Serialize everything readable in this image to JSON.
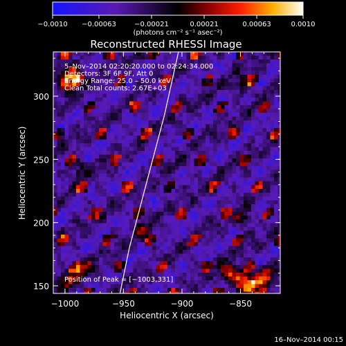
{
  "chart_data": {
    "type": "heatmap",
    "title": "Reconstructed RHESSI Image",
    "xlabel": "Heliocentric X (arcsec)",
    "ylabel": "Heliocentric Y (arcsec)",
    "xlim": [
      -1010,
      -816
    ],
    "ylim": [
      144,
      335
    ],
    "x_ticks": [
      -1000,
      -950,
      -900,
      -850
    ],
    "x_tick_labels": [
      "−1000",
      "−950",
      "−900",
      "−850"
    ],
    "y_ticks": [
      150,
      200,
      250,
      300
    ],
    "y_tick_labels": [
      "150",
      "200",
      "250",
      "300"
    ],
    "colorbar": {
      "range": [
        -0.001,
        0.001
      ],
      "ticks": [
        -0.001,
        -0.00063,
        -0.00021,
        0.00021,
        0.00063,
        0.001
      ],
      "tick_labels": [
        "−0.0010",
        "−0.00063",
        "−0.00021",
        "0.00021",
        "0.00063",
        "0.0010"
      ],
      "unit_label": "(photons cm⁻² s⁻¹ asec⁻²)"
    },
    "annotations": [
      "5–Nov–2014 02:20:20.000 to 02:24:34.000",
      "Detectors: 3F 6F 9F, Att 0",
      "Energy Range: 25.0 – 50.0 keV",
      "Clean    Total counts: 2.67E+03"
    ],
    "peak_label": "Position of Peak = [−1003,331]",
    "peak_position": [
      -1003,
      331
    ],
    "limb_curve": [
      [
        -953,
        144
      ],
      [
        -945,
        180
      ],
      [
        -935,
        215
      ],
      [
        -925,
        250
      ],
      [
        -915,
        285
      ],
      [
        -903,
        335
      ]
    ],
    "hot_regions": [
      {
        "x": -995,
        "y": 318,
        "value": 0.0009
      },
      {
        "x": -1000,
        "y": 312,
        "value": 0.0008
      },
      {
        "x": -985,
        "y": 165,
        "value": 0.0005
      },
      {
        "x": -1000,
        "y": 155,
        "value": 0.0006
      },
      {
        "x": -850,
        "y": 155,
        "value": 0.0009
      },
      {
        "x": -840,
        "y": 152,
        "value": 0.0008
      },
      {
        "x": -862,
        "y": 162,
        "value": 0.0007
      },
      {
        "x": -830,
        "y": 160,
        "value": 0.0006
      },
      {
        "x": -935,
        "y": 195,
        "value": 0.0004
      },
      {
        "x": -850,
        "y": 205,
        "value": 0.0004
      },
      {
        "x": -990,
        "y": 245,
        "value": 0.0004
      },
      {
        "x": -850,
        "y": 310,
        "value": 0.0004
      }
    ]
  },
  "footer": {
    "timestamp": "16–Nov–2014 00:15"
  }
}
